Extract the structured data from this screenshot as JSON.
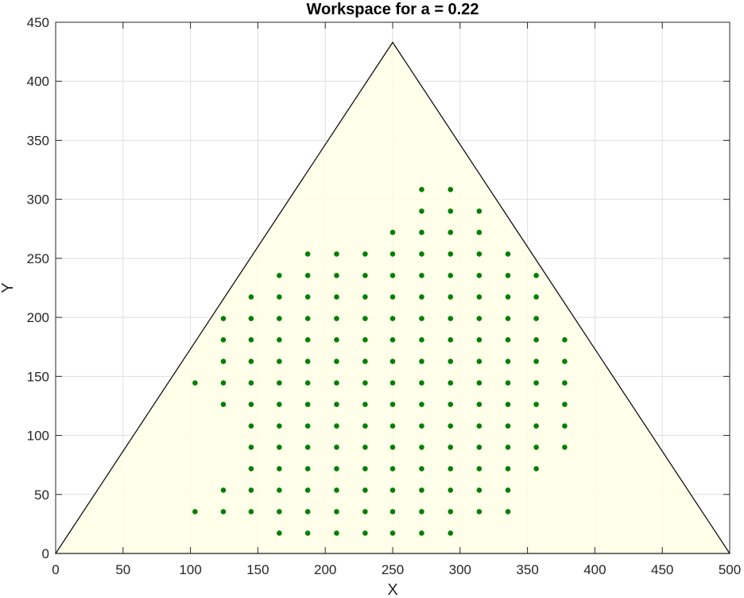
{
  "chart_data": {
    "type": "scatter",
    "title": "Workspace for a = 0.22",
    "xlabel": "X",
    "ylabel": "Y",
    "xlim": [
      0,
      500
    ],
    "ylim": [
      0,
      450
    ],
    "xticks": [
      0,
      50,
      100,
      150,
      200,
      250,
      300,
      350,
      400,
      450,
      500
    ],
    "yticks": [
      0,
      50,
      100,
      150,
      200,
      250,
      300,
      350,
      400,
      450
    ],
    "grid": true,
    "triangle": {
      "vertices": [
        [
          0,
          0
        ],
        [
          500,
          0
        ],
        [
          250,
          433
        ]
      ],
      "fill_color": "#FFFFE6",
      "edge_color": "#000000"
    },
    "point_color": "#008000",
    "points": [
      [
        271.5,
        308.3
      ],
      [
        292.9,
        308.3
      ],
      [
        271.5,
        290.0
      ],
      [
        292.9,
        290.0
      ],
      [
        314.2,
        290.0
      ],
      [
        250.0,
        272.0
      ],
      [
        271.5,
        272.0
      ],
      [
        292.9,
        272.0
      ],
      [
        314.2,
        272.0
      ],
      [
        187.0,
        253.7
      ],
      [
        208.4,
        253.7
      ],
      [
        229.6,
        253.7
      ],
      [
        250.0,
        253.7
      ],
      [
        271.5,
        253.7
      ],
      [
        292.9,
        253.7
      ],
      [
        314.2,
        253.7
      ],
      [
        335.5,
        253.7
      ],
      [
        165.9,
        235.5
      ],
      [
        187.0,
        235.5
      ],
      [
        208.4,
        235.5
      ],
      [
        229.6,
        235.5
      ],
      [
        250.0,
        235.5
      ],
      [
        271.5,
        235.5
      ],
      [
        292.9,
        235.5
      ],
      [
        314.2,
        235.5
      ],
      [
        335.5,
        235.5
      ],
      [
        356.5,
        235.5
      ],
      [
        145.0,
        217.3
      ],
      [
        165.9,
        217.3
      ],
      [
        187.0,
        217.3
      ],
      [
        208.4,
        217.3
      ],
      [
        229.6,
        217.3
      ],
      [
        250.0,
        217.3
      ],
      [
        271.5,
        217.3
      ],
      [
        292.9,
        217.3
      ],
      [
        314.2,
        217.3
      ],
      [
        335.5,
        217.3
      ],
      [
        356.5,
        217.3
      ],
      [
        124.4,
        199.0
      ],
      [
        145.0,
        199.0
      ],
      [
        165.9,
        199.0
      ],
      [
        187.0,
        199.0
      ],
      [
        208.4,
        199.0
      ],
      [
        229.6,
        199.0
      ],
      [
        250.0,
        199.0
      ],
      [
        271.5,
        199.0
      ],
      [
        292.9,
        199.0
      ],
      [
        314.2,
        199.0
      ],
      [
        335.5,
        199.0
      ],
      [
        356.5,
        199.0
      ],
      [
        124.4,
        181.0
      ],
      [
        145.0,
        181.0
      ],
      [
        165.9,
        181.0
      ],
      [
        187.0,
        181.0
      ],
      [
        208.4,
        181.0
      ],
      [
        229.6,
        181.0
      ],
      [
        250.0,
        181.0
      ],
      [
        271.5,
        181.0
      ],
      [
        292.9,
        181.0
      ],
      [
        314.2,
        181.0
      ],
      [
        335.5,
        181.0
      ],
      [
        356.5,
        181.0
      ],
      [
        377.6,
        181.0
      ],
      [
        124.4,
        162.7
      ],
      [
        145.0,
        162.7
      ],
      [
        165.9,
        162.7
      ],
      [
        187.0,
        162.7
      ],
      [
        208.4,
        162.7
      ],
      [
        229.6,
        162.7
      ],
      [
        250.0,
        162.7
      ],
      [
        271.5,
        162.7
      ],
      [
        292.9,
        162.7
      ],
      [
        314.2,
        162.7
      ],
      [
        335.5,
        162.7
      ],
      [
        356.5,
        162.7
      ],
      [
        377.6,
        162.7
      ],
      [
        103.4,
        144.5
      ],
      [
        124.4,
        144.5
      ],
      [
        145.0,
        144.5
      ],
      [
        165.9,
        144.5
      ],
      [
        187.0,
        144.5
      ],
      [
        208.4,
        144.5
      ],
      [
        229.6,
        144.5
      ],
      [
        250.0,
        144.5
      ],
      [
        271.5,
        144.5
      ],
      [
        292.9,
        144.5
      ],
      [
        314.2,
        144.5
      ],
      [
        335.5,
        144.5
      ],
      [
        356.5,
        144.5
      ],
      [
        377.6,
        144.5
      ],
      [
        124.4,
        126.3
      ],
      [
        145.0,
        126.3
      ],
      [
        165.9,
        126.3
      ],
      [
        187.0,
        126.3
      ],
      [
        208.4,
        126.3
      ],
      [
        229.6,
        126.3
      ],
      [
        250.0,
        126.3
      ],
      [
        271.5,
        126.3
      ],
      [
        292.9,
        126.3
      ],
      [
        314.2,
        126.3
      ],
      [
        335.5,
        126.3
      ],
      [
        356.5,
        126.3
      ],
      [
        377.6,
        126.3
      ],
      [
        145.0,
        108.0
      ],
      [
        165.9,
        108.0
      ],
      [
        187.0,
        108.0
      ],
      [
        208.4,
        108.0
      ],
      [
        229.6,
        108.0
      ],
      [
        250.0,
        108.0
      ],
      [
        271.5,
        108.0
      ],
      [
        292.9,
        108.0
      ],
      [
        314.2,
        108.0
      ],
      [
        335.5,
        108.0
      ],
      [
        356.5,
        108.0
      ],
      [
        377.6,
        108.0
      ],
      [
        145.0,
        90.0
      ],
      [
        165.9,
        90.0
      ],
      [
        187.0,
        90.0
      ],
      [
        208.4,
        90.0
      ],
      [
        229.6,
        90.0
      ],
      [
        250.0,
        90.0
      ],
      [
        271.5,
        90.0
      ],
      [
        292.9,
        90.0
      ],
      [
        314.2,
        90.0
      ],
      [
        335.5,
        90.0
      ],
      [
        356.5,
        90.0
      ],
      [
        377.6,
        90.0
      ],
      [
        145.0,
        71.8
      ],
      [
        165.9,
        71.8
      ],
      [
        187.0,
        71.8
      ],
      [
        208.4,
        71.8
      ],
      [
        229.6,
        71.8
      ],
      [
        250.0,
        71.8
      ],
      [
        271.5,
        71.8
      ],
      [
        292.9,
        71.8
      ],
      [
        314.2,
        71.8
      ],
      [
        335.5,
        71.8
      ],
      [
        356.5,
        71.8
      ],
      [
        124.4,
        53.6
      ],
      [
        145.0,
        53.6
      ],
      [
        165.9,
        53.6
      ],
      [
        187.0,
        53.6
      ],
      [
        208.4,
        53.6
      ],
      [
        229.6,
        53.6
      ],
      [
        250.0,
        53.6
      ],
      [
        271.5,
        53.6
      ],
      [
        292.9,
        53.6
      ],
      [
        314.2,
        53.6
      ],
      [
        335.5,
        53.6
      ],
      [
        103.4,
        35.4
      ],
      [
        124.4,
        35.4
      ],
      [
        145.0,
        35.4
      ],
      [
        165.9,
        35.4
      ],
      [
        187.0,
        35.4
      ],
      [
        208.4,
        35.4
      ],
      [
        229.6,
        35.4
      ],
      [
        250.0,
        35.4
      ],
      [
        271.5,
        35.4
      ],
      [
        292.9,
        35.4
      ],
      [
        314.2,
        35.4
      ],
      [
        335.5,
        35.4
      ],
      [
        165.9,
        17.2
      ],
      [
        187.0,
        17.2
      ],
      [
        208.4,
        17.2
      ],
      [
        229.6,
        17.2
      ],
      [
        250.0,
        17.2
      ],
      [
        271.5,
        17.2
      ],
      [
        292.9,
        17.2
      ]
    ]
  }
}
